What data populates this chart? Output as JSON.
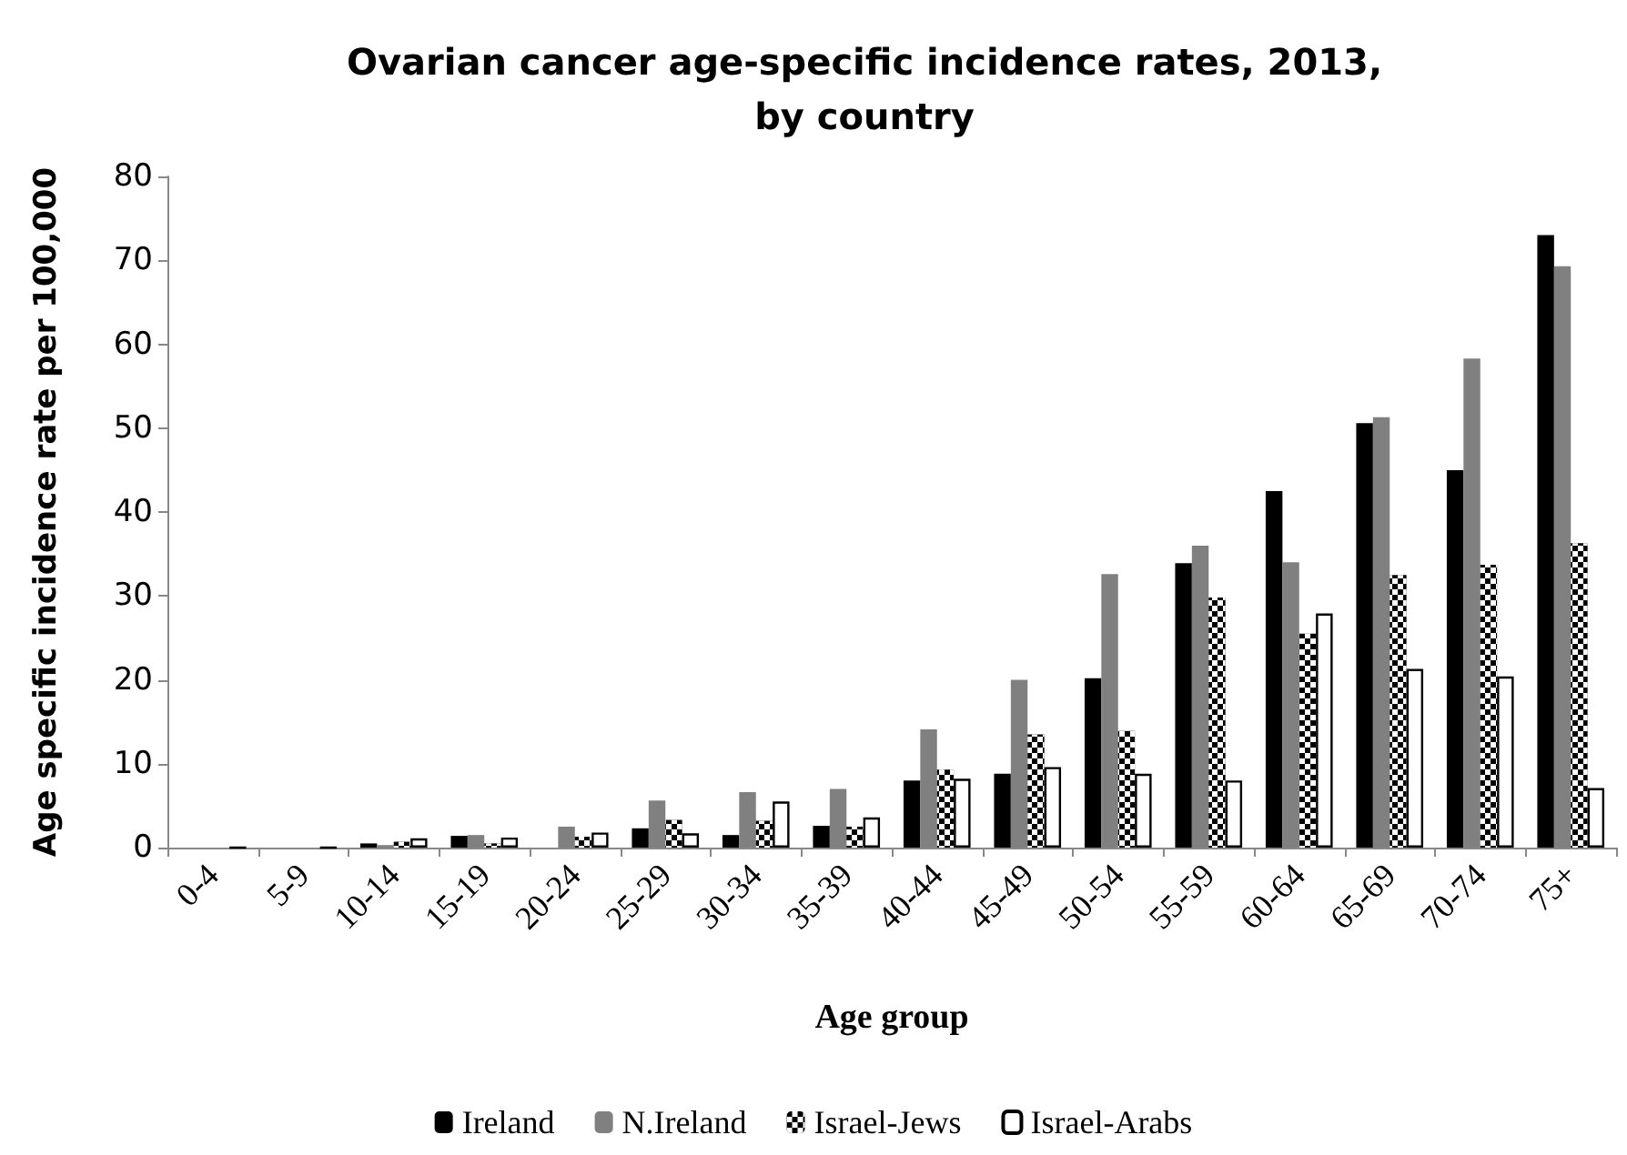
{
  "chart_data": {
    "type": "bar",
    "title": "Ovarian cancer age-specific incidence rates, 2013,\nby country",
    "xlabel": "Age group",
    "ylabel": "Age specific incidence rate per 100,000",
    "categories": [
      "0-4",
      "5-9",
      "10-14",
      "15-19",
      "20-24",
      "25-29",
      "30-34",
      "35-39",
      "40-44",
      "45-49",
      "50-54",
      "55-59",
      "60-64",
      "65-69",
      "70-74",
      "75+"
    ],
    "series": [
      {
        "name": "Ireland",
        "color": "#000000",
        "values": [
          0,
          0,
          0.5,
          1.4,
          0,
          2.3,
          1.5,
          2.6,
          8.0,
          8.8,
          20.2,
          33.9,
          42.5,
          50.6,
          45.0,
          73.0
        ]
      },
      {
        "name": "N.Ireland",
        "color": "#808080",
        "values": [
          0,
          0,
          0.3,
          1.5,
          2.5,
          5.6,
          6.6,
          7.0,
          14.1,
          20.0,
          32.6,
          36.0,
          34.0,
          51.3,
          58.3,
          69.3
        ]
      },
      {
        "name": "Israel-Jews",
        "color": "#000000",
        "values": [
          0,
          0,
          0.7,
          0.5,
          1.3,
          3.3,
          3.2,
          2.5,
          9.3,
          13.5,
          13.9,
          29.8,
          25.5,
          32.5,
          33.7,
          36.3
        ]
      },
      {
        "name": "Israel-Arabs",
        "color": "#ffffff",
        "values": [
          0,
          0,
          1.1,
          1.2,
          1.8,
          1.7,
          5.5,
          3.6,
          8.2,
          9.6,
          8.8,
          8.0,
          27.9,
          21.3,
          20.4,
          7.1
        ]
      }
    ],
    "ylim": [
      0,
      80
    ],
    "yticks": [
      0,
      10,
      20,
      30,
      40,
      50,
      60,
      70,
      80
    ],
    "grid": false,
    "legend": "bottom"
  }
}
